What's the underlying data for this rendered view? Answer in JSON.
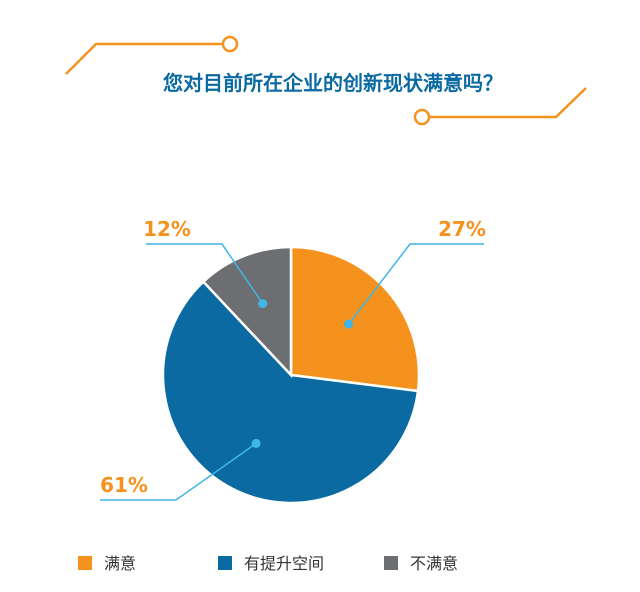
{
  "chart_data": {
    "type": "pie",
    "title": "您对目前所在企业的创新现状满意吗？",
    "categories": [
      "满意",
      "有提升空间",
      "不满意"
    ],
    "values": [
      27,
      61,
      12
    ],
    "value_labels": [
      "27%",
      "61%",
      "12%"
    ],
    "colors": [
      "#F5921E",
      "#0A6AA1",
      "#6D6E71"
    ],
    "legend_placement": "bottom"
  },
  "colors": {
    "title": "#0A6AA1",
    "decoration": "#F5921E",
    "leader_line": "#3FB6E8",
    "label_text": "#F5921E",
    "slice_border": "#ffffff"
  }
}
